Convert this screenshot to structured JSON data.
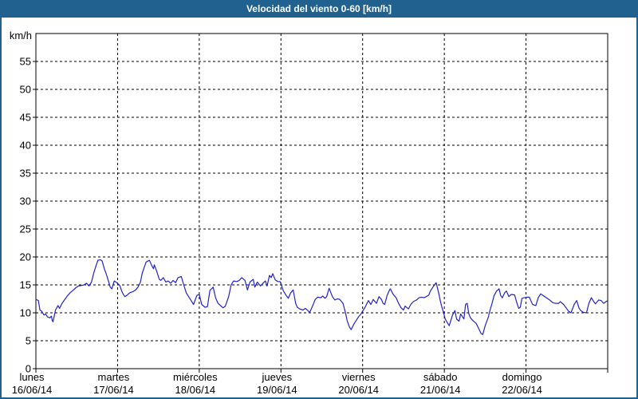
{
  "window": {
    "title": "Velocidad del viento 0-60 [km/h]"
  },
  "colors": {
    "frame": "#20618f",
    "title_text": "#ffffff",
    "plot_background": "#fefffe",
    "axis": "#000000",
    "grid": "#000000",
    "line": "#2222cc"
  },
  "y_axis": {
    "unit_label": "km/h",
    "ticks": [
      0,
      5,
      10,
      15,
      20,
      25,
      30,
      35,
      40,
      45,
      50,
      55
    ]
  },
  "x_axis": {
    "days": [
      {
        "name": "lunes",
        "date": "16/06/14"
      },
      {
        "name": "martes",
        "date": "17/06/14"
      },
      {
        "name": "miércoles",
        "date": "18/06/14"
      },
      {
        "name": "jueves",
        "date": "19/06/14"
      },
      {
        "name": "viernes",
        "date": "20/06/14"
      },
      {
        "name": "sábado",
        "date": "21/06/14"
      },
      {
        "name": "domingo",
        "date": "22/06/14"
      }
    ]
  },
  "chart_data": {
    "type": "line",
    "title": "Velocidad del viento 0-60 [km/h]",
    "ylabel": "km/h",
    "ylim": [
      0,
      60
    ],
    "xlim": [
      0,
      7
    ],
    "x_unit": "days from lunes 16/06/14 00:00",
    "grid": true,
    "legend": false,
    "series": [
      {
        "name": "wind-speed",
        "points": [
          [
            0.0,
            12.4
          ],
          [
            0.03,
            12.2
          ],
          [
            0.05,
            10.5
          ],
          [
            0.07,
            10.3
          ],
          [
            0.1,
            9.6
          ],
          [
            0.12,
            9.8
          ],
          [
            0.14,
            9.3
          ],
          [
            0.17,
            9.1
          ],
          [
            0.19,
            9.4
          ],
          [
            0.2,
            8.6
          ],
          [
            0.21,
            8.4
          ],
          [
            0.24,
            10.5
          ],
          [
            0.27,
            11.3
          ],
          [
            0.29,
            10.8
          ],
          [
            0.32,
            11.7
          ],
          [
            0.35,
            12.3
          ],
          [
            0.39,
            13.1
          ],
          [
            0.42,
            13.6
          ],
          [
            0.46,
            14.1
          ],
          [
            0.49,
            14.5
          ],
          [
            0.52,
            14.8
          ],
          [
            0.56,
            14.9
          ],
          [
            0.59,
            15.0
          ],
          [
            0.62,
            15.3
          ],
          [
            0.65,
            14.8
          ],
          [
            0.68,
            15.5
          ],
          [
            0.71,
            17.2
          ],
          [
            0.74,
            18.6
          ],
          [
            0.76,
            19.4
          ],
          [
            0.79,
            19.5
          ],
          [
            0.81,
            19.3
          ],
          [
            0.84,
            17.8
          ],
          [
            0.86,
            17.0
          ],
          [
            0.89,
            15.6
          ],
          [
            0.91,
            14.6
          ],
          [
            0.93,
            14.3
          ],
          [
            0.96,
            15.7
          ],
          [
            0.98,
            15.5
          ],
          [
            1.0,
            15.3
          ],
          [
            1.03,
            14.8
          ],
          [
            1.05,
            13.9
          ],
          [
            1.07,
            13.3
          ],
          [
            1.09,
            12.9
          ],
          [
            1.12,
            13.2
          ],
          [
            1.15,
            13.6
          ],
          [
            1.19,
            13.8
          ],
          [
            1.22,
            14.1
          ],
          [
            1.25,
            14.6
          ],
          [
            1.28,
            15.5
          ],
          [
            1.3,
            17.0
          ],
          [
            1.33,
            18.3
          ],
          [
            1.35,
            19.1
          ],
          [
            1.39,
            19.4
          ],
          [
            1.42,
            18.4
          ],
          [
            1.44,
            17.9
          ],
          [
            1.45,
            18.6
          ],
          [
            1.48,
            17.4
          ],
          [
            1.51,
            16.0
          ],
          [
            1.53,
            15.8
          ],
          [
            1.56,
            16.3
          ],
          [
            1.59,
            15.5
          ],
          [
            1.62,
            15.7
          ],
          [
            1.65,
            15.3
          ],
          [
            1.68,
            15.8
          ],
          [
            1.71,
            15.4
          ],
          [
            1.74,
            16.3
          ],
          [
            1.78,
            16.5
          ],
          [
            1.81,
            15.0
          ],
          [
            1.84,
            13.6
          ],
          [
            1.87,
            12.9
          ],
          [
            1.9,
            12.2
          ],
          [
            1.93,
            11.5
          ],
          [
            1.97,
            13.1
          ],
          [
            2.0,
            13.3
          ],
          [
            2.03,
            11.5
          ],
          [
            2.07,
            11.0
          ],
          [
            2.1,
            11.1
          ],
          [
            2.13,
            14.0
          ],
          [
            2.17,
            14.6
          ],
          [
            2.2,
            12.7
          ],
          [
            2.23,
            11.7
          ],
          [
            2.26,
            11.3
          ],
          [
            2.29,
            10.9
          ],
          [
            2.32,
            11.2
          ],
          [
            2.36,
            12.9
          ],
          [
            2.39,
            15.0
          ],
          [
            2.42,
            15.7
          ],
          [
            2.46,
            15.6
          ],
          [
            2.49,
            15.8
          ],
          [
            2.52,
            16.3
          ],
          [
            2.56,
            15.8
          ],
          [
            2.59,
            14.1
          ],
          [
            2.62,
            15.5
          ],
          [
            2.66,
            16.0
          ],
          [
            2.68,
            14.6
          ],
          [
            2.71,
            15.5
          ],
          [
            2.75,
            14.8
          ],
          [
            2.78,
            15.3
          ],
          [
            2.81,
            15.7
          ],
          [
            2.83,
            14.8
          ],
          [
            2.86,
            16.7
          ],
          [
            2.88,
            16.3
          ],
          [
            2.9,
            17.0
          ],
          [
            2.93,
            15.9
          ],
          [
            2.96,
            15.6
          ],
          [
            2.99,
            15.6
          ],
          [
            3.03,
            13.9
          ],
          [
            3.06,
            13.2
          ],
          [
            3.08,
            12.8
          ],
          [
            3.09,
            12.6
          ],
          [
            3.12,
            13.6
          ],
          [
            3.15,
            14.1
          ],
          [
            3.18,
            11.7
          ],
          [
            3.2,
            11.0
          ],
          [
            3.23,
            10.7
          ],
          [
            3.27,
            10.5
          ],
          [
            3.3,
            10.8
          ],
          [
            3.33,
            10.4
          ],
          [
            3.35,
            10.0
          ],
          [
            3.39,
            11.3
          ],
          [
            3.42,
            12.4
          ],
          [
            3.45,
            12.8
          ],
          [
            3.49,
            12.7
          ],
          [
            3.51,
            13.0
          ],
          [
            3.54,
            12.6
          ],
          [
            3.56,
            12.9
          ],
          [
            3.59,
            14.4
          ],
          [
            3.63,
            12.9
          ],
          [
            3.66,
            12.3
          ],
          [
            3.69,
            12.5
          ],
          [
            3.72,
            12.4
          ],
          [
            3.76,
            11.7
          ],
          [
            3.79,
            10.0
          ],
          [
            3.81,
            8.6
          ],
          [
            3.84,
            7.4
          ],
          [
            3.86,
            7.0
          ],
          [
            3.89,
            7.9
          ],
          [
            3.92,
            8.6
          ],
          [
            3.95,
            9.3
          ],
          [
            3.98,
            9.8
          ],
          [
            4.0,
            10.3
          ],
          [
            4.03,
            11.0
          ],
          [
            4.07,
            12.2
          ],
          [
            4.1,
            11.5
          ],
          [
            4.13,
            12.4
          ],
          [
            4.17,
            11.7
          ],
          [
            4.2,
            12.9
          ],
          [
            4.23,
            12.4
          ],
          [
            4.25,
            11.7
          ],
          [
            4.27,
            11.5
          ],
          [
            4.3,
            13.1
          ],
          [
            4.33,
            14.1
          ],
          [
            4.34,
            14.3
          ],
          [
            4.37,
            13.4
          ],
          [
            4.41,
            12.7
          ],
          [
            4.44,
            11.7
          ],
          [
            4.47,
            10.9
          ],
          [
            4.5,
            10.5
          ],
          [
            4.52,
            11.2
          ],
          [
            4.56,
            10.7
          ],
          [
            4.59,
            11.5
          ],
          [
            4.62,
            12.0
          ],
          [
            4.66,
            12.3
          ],
          [
            4.69,
            12.7
          ],
          [
            4.72,
            12.8
          ],
          [
            4.75,
            12.7
          ],
          [
            4.78,
            12.9
          ],
          [
            4.81,
            13.2
          ],
          [
            4.83,
            13.9
          ],
          [
            4.86,
            14.6
          ],
          [
            4.9,
            15.4
          ],
          [
            4.93,
            13.6
          ],
          [
            4.95,
            12.2
          ],
          [
            4.97,
            11.0
          ],
          [
            4.99,
            10.1
          ],
          [
            5.01,
            8.9
          ],
          [
            5.05,
            7.9
          ],
          [
            5.06,
            7.7
          ],
          [
            5.1,
            9.6
          ],
          [
            5.13,
            10.4
          ],
          [
            5.15,
            8.9
          ],
          [
            5.18,
            8.5
          ],
          [
            5.2,
            9.8
          ],
          [
            5.24,
            8.9
          ],
          [
            5.26,
            11.5
          ],
          [
            5.28,
            11.7
          ],
          [
            5.3,
            9.8
          ],
          [
            5.32,
            9.1
          ],
          [
            5.35,
            8.6
          ],
          [
            5.39,
            8.1
          ],
          [
            5.42,
            7.2
          ],
          [
            5.45,
            6.3
          ],
          [
            5.47,
            6.1
          ],
          [
            5.5,
            7.7
          ],
          [
            5.54,
            9.3
          ],
          [
            5.55,
            10.0
          ],
          [
            5.58,
            11.5
          ],
          [
            5.61,
            13.1
          ],
          [
            5.64,
            13.9
          ],
          [
            5.67,
            14.3
          ],
          [
            5.69,
            13.1
          ],
          [
            5.71,
            12.7
          ],
          [
            5.74,
            13.6
          ],
          [
            5.76,
            13.9
          ],
          [
            5.79,
            12.9
          ],
          [
            5.82,
            13.3
          ],
          [
            5.86,
            13.2
          ],
          [
            5.89,
            11.7
          ],
          [
            5.91,
            10.8
          ],
          [
            5.93,
            11.0
          ],
          [
            5.95,
            12.6
          ],
          [
            5.98,
            12.7
          ],
          [
            6.01,
            12.8
          ],
          [
            6.04,
            12.8
          ],
          [
            6.08,
            11.5
          ],
          [
            6.12,
            11.3
          ],
          [
            6.15,
            12.7
          ],
          [
            6.18,
            13.4
          ],
          [
            6.23,
            12.9
          ],
          [
            6.28,
            12.4
          ],
          [
            6.33,
            11.8
          ],
          [
            6.36,
            11.7
          ],
          [
            6.4,
            11.7
          ],
          [
            6.42,
            12.0
          ],
          [
            6.46,
            11.5
          ],
          [
            6.49,
            10.9
          ],
          [
            6.52,
            10.3
          ],
          [
            6.55,
            10.0
          ],
          [
            6.59,
            11.5
          ],
          [
            6.62,
            12.2
          ],
          [
            6.65,
            10.8
          ],
          [
            6.67,
            10.4
          ],
          [
            6.7,
            10.1
          ],
          [
            6.74,
            10.0
          ],
          [
            6.77,
            11.7
          ],
          [
            6.8,
            12.7
          ],
          [
            6.83,
            12.0
          ],
          [
            6.85,
            11.6
          ],
          [
            6.89,
            12.3
          ],
          [
            6.92,
            12.2
          ],
          [
            6.95,
            11.7
          ],
          [
            6.99,
            12.1
          ]
        ]
      }
    ]
  }
}
